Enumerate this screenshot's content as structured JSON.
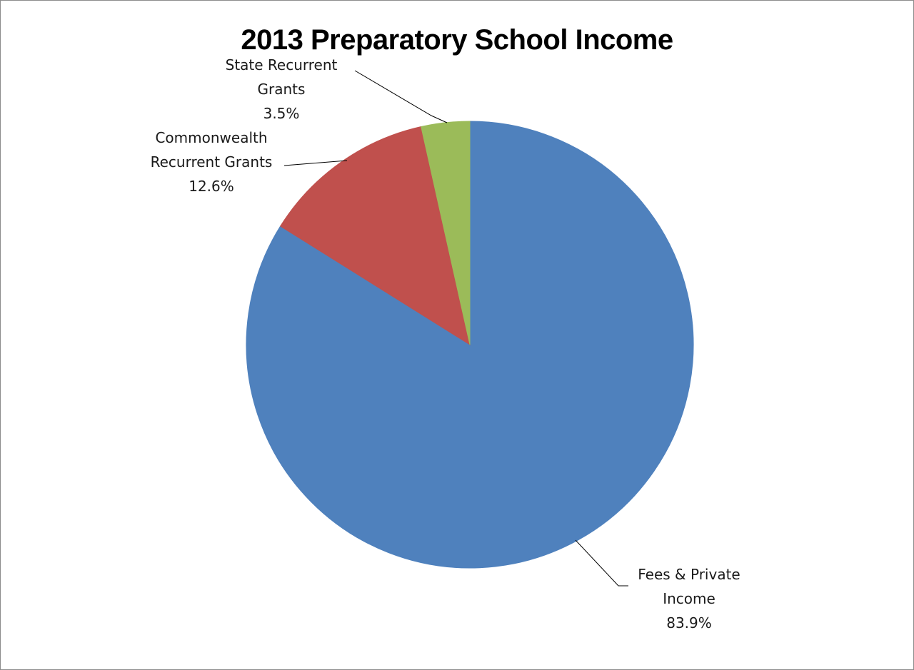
{
  "chart_data": {
    "type": "pie",
    "title": "2013 Preparatory School Income",
    "start_angle_deg": 0,
    "direction": "clockwise",
    "legend": "none",
    "slices": [
      {
        "name": "Fees & Private Income",
        "label_lines": [
          "Fees & Private",
          "Income"
        ],
        "value": 83.9,
        "value_label": "83.9%",
        "color": "#4f81bd"
      },
      {
        "name": "Commonwealth Recurrent Grants",
        "label_lines": [
          "Commonwealth",
          "Recurrent Grants"
        ],
        "value": 12.6,
        "value_label": "12.6%",
        "color": "#c0504d"
      },
      {
        "name": "State Recurrent Grants",
        "label_lines": [
          "State Recurrent",
          "Grants"
        ],
        "value": 3.5,
        "value_label": "3.5%",
        "color": "#9bbb59"
      }
    ]
  }
}
